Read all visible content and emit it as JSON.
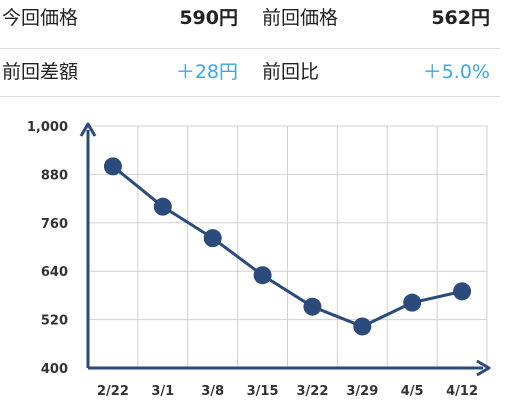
{
  "stats": {
    "current_price_label": "今回価格",
    "current_price_value": "590円",
    "previous_price_label": "前回価格",
    "previous_price_value": "562円",
    "diff_label": "前回差額",
    "diff_value": "＋28円",
    "ratio_label": "前回比",
    "ratio_value": "＋5.0%"
  },
  "colors": {
    "accent": "#3aa7e0",
    "series": "#2b4b7c",
    "grid": "#d0d0d0"
  },
  "chart_data": {
    "type": "line",
    "categories": [
      "2/22",
      "3/1",
      "3/8",
      "3/15",
      "3/22",
      "3/29",
      "4/5",
      "4/12"
    ],
    "values": [
      900,
      800,
      722,
      630,
      552,
      503,
      562,
      590
    ],
    "ylim": [
      400,
      1000
    ],
    "yticks": [
      "400",
      "520",
      "640",
      "760",
      "880",
      "1,000"
    ],
    "ytick_values": [
      400,
      520,
      640,
      760,
      880,
      1000
    ],
    "grid": true
  }
}
